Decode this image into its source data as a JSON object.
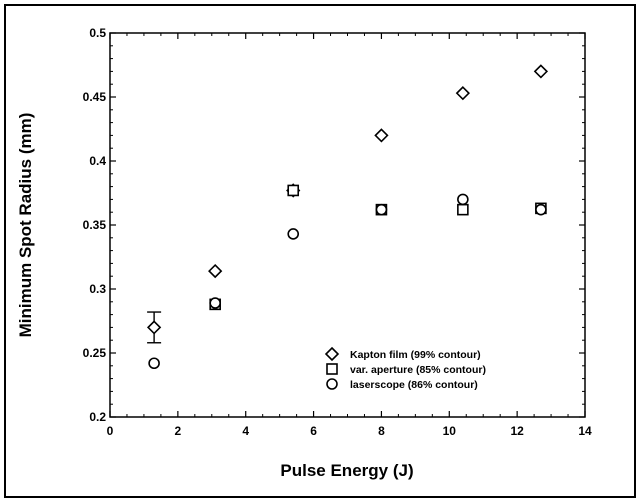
{
  "chart_data": {
    "type": "scatter",
    "title": "",
    "xlabel": "Pulse Energy (J)",
    "ylabel": "Minimum Spot Radius (mm)",
    "xlim": [
      0,
      14
    ],
    "ylim": [
      0.2,
      0.5
    ],
    "x_ticks": [
      "0",
      "2",
      "4",
      "6",
      "8",
      "10",
      "12",
      "14"
    ],
    "y_ticks": [
      "0.2",
      "0.25",
      "0.3",
      "0.35",
      "0.4",
      "0.45",
      "0.5"
    ],
    "grid": false,
    "legend_position": "bottom-right",
    "series": [
      {
        "name": "Kapton film (99% contour)",
        "marker": "diamond",
        "x": [
          1.3,
          3.1,
          5.4,
          8.0,
          10.4,
          12.7
        ],
        "y": [
          0.27,
          0.314,
          0.377,
          0.42,
          0.453,
          0.47
        ],
        "error_y": [
          0.012,
          null,
          null,
          null,
          null,
          null
        ]
      },
      {
        "name": "var. aperture (85% contour)",
        "marker": "square",
        "x": [
          3.1,
          5.4,
          8.0,
          10.4,
          12.7
        ],
        "y": [
          0.288,
          0.377,
          0.362,
          0.362,
          0.363
        ],
        "error_y": [
          null,
          null,
          null,
          null,
          null
        ]
      },
      {
        "name": "laserscope (86% contour)",
        "marker": "circle",
        "x": [
          1.3,
          3.1,
          5.4,
          8.0,
          10.4,
          12.7
        ],
        "y": [
          0.242,
          0.289,
          0.343,
          0.362,
          0.37,
          0.362
        ],
        "error_y": [
          null,
          null,
          null,
          null,
          null,
          null
        ]
      }
    ]
  }
}
